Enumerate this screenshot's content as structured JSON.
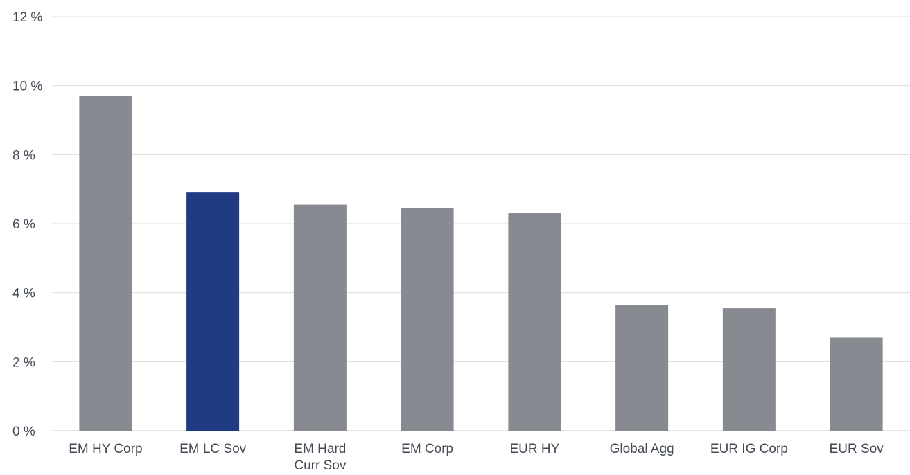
{
  "chart_data": {
    "type": "bar",
    "categories": [
      "EM HY Corp",
      "EM LC Sov",
      "EM Hard Curr Sov",
      "EM Corp",
      "EUR HY",
      "Global Agg",
      "EUR IG Corp",
      "EUR Sov"
    ],
    "category_lines": [
      [
        "EM HY Corp"
      ],
      [
        "EM LC Sov"
      ],
      [
        "EM Hard",
        "Curr Sov"
      ],
      [
        "EM Corp"
      ],
      [
        "EUR HY"
      ],
      [
        "Global Agg"
      ],
      [
        "EUR IG Corp"
      ],
      [
        "EUR Sov"
      ]
    ],
    "values": [
      9.7,
      6.9,
      6.55,
      6.45,
      6.3,
      3.65,
      3.55,
      2.7
    ],
    "highlight_index": 1,
    "ylim": [
      0,
      12
    ],
    "yticks": [
      0,
      2,
      4,
      6,
      8,
      10,
      12
    ],
    "ytick_labels": [
      "0 %",
      "2 %",
      "4 %",
      "6 %",
      "8 %",
      "10 %",
      "12 %"
    ],
    "title": "",
    "xlabel": "",
    "ylabel": "",
    "grid": true,
    "colors": {
      "bar": "#878a91",
      "highlight": "#213b82",
      "grid": "#dcdcdc",
      "text": "#444a55"
    }
  }
}
